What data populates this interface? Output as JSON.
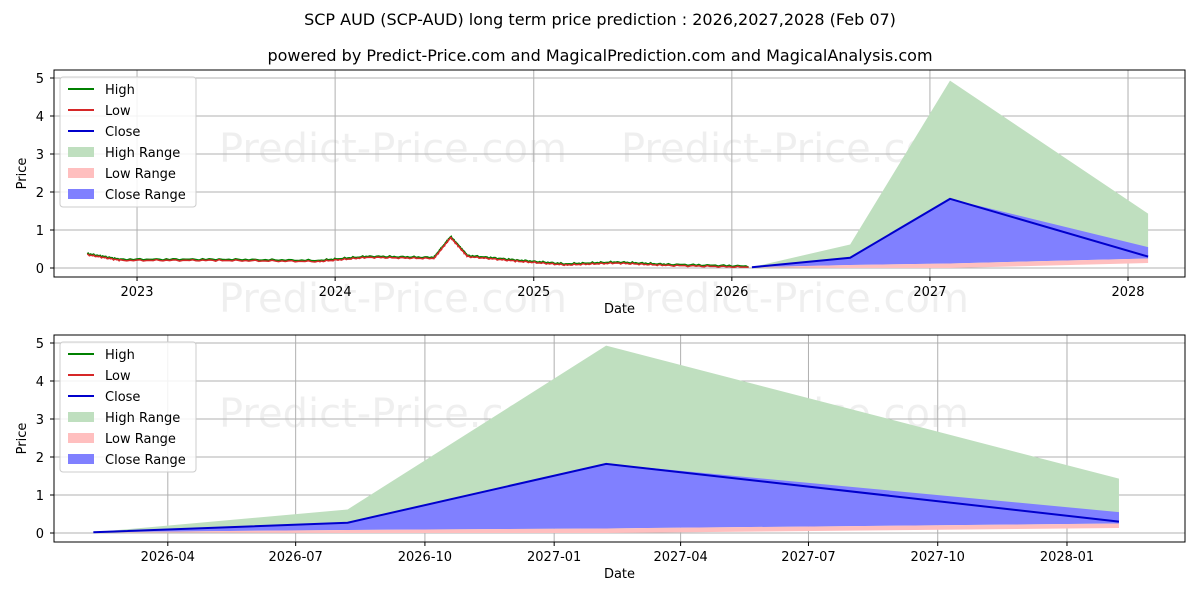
{
  "title": "SCP AUD (SCP-AUD) long term price prediction : 2026,2027,2028 (Feb 07)",
  "subtitle": "powered by Predict-Price.com and MagicalPrediction.com and MagicalAnalysis.com",
  "watermark": "Predict-Price.com",
  "colors": {
    "high": "#008000",
    "low": "#d62728",
    "close": "#0000cc",
    "high_range": "#bfdfbf",
    "low_range": "#ffbfbf",
    "close_range": "#8080ff"
  },
  "legend": [
    "High",
    "Low",
    "Close",
    "High Range",
    "Low Range",
    "Close Range"
  ],
  "chart_data": [
    {
      "type": "line",
      "title": "",
      "xlabel": "Date",
      "ylabel": "Price",
      "ylim": [
        0,
        5
      ],
      "yticks": [
        "0",
        "1",
        "2",
        "3",
        "4",
        "5"
      ],
      "xticks": [
        "2023",
        "2024",
        "2025",
        "2026",
        "2027",
        "2028"
      ],
      "grid": true,
      "legend_position": "upper left",
      "history_note": "Historical High/Low approx 0.35 (Oct 2022) declining to ~0.2, spike ~0.8 in early Aug 2024, then declining to ~0.02 by Feb 2026",
      "series": [
        {
          "name": "High/Low history",
          "x": [
            "2022-10",
            "2022-12",
            "2023-06",
            "2023-12",
            "2024-03",
            "2024-07",
            "2024-08",
            "2024-09",
            "2024-12",
            "2025-03",
            "2025-06",
            "2025-09",
            "2026-02"
          ],
          "values": [
            0.35,
            0.2,
            0.2,
            0.17,
            0.28,
            0.25,
            0.8,
            0.3,
            0.18,
            0.08,
            0.13,
            0.07,
            0.02
          ]
        },
        {
          "name": "Close",
          "x": [
            "2026-02-07",
            "2026-08-07",
            "2027-02-07",
            "2028-02-07"
          ],
          "values": [
            0.02,
            0.27,
            1.82,
            0.3
          ]
        },
        {
          "name": "High Range",
          "x": [
            "2026-02-07",
            "2026-08-07",
            "2027-02-07",
            "2028-02-07"
          ],
          "values": [
            0.02,
            0.62,
            4.93,
            1.43
          ]
        },
        {
          "name": "Low Range",
          "x": [
            "2026-02-07",
            "2026-08-07",
            "2027-02-07",
            "2028-02-07"
          ],
          "values": [
            0.02,
            0.08,
            0.12,
            0.25
          ]
        },
        {
          "name": "Close Range",
          "x": [
            "2026-02-07",
            "2026-08-07",
            "2027-02-07",
            "2028-02-07"
          ],
          "values": [
            0.02,
            0.27,
            1.82,
            0.55
          ]
        }
      ]
    },
    {
      "type": "line",
      "title": "",
      "xlabel": "Date",
      "ylabel": "Price",
      "ylim": [
        0,
        5
      ],
      "yticks": [
        "0",
        "1",
        "2",
        "3",
        "4",
        "5"
      ],
      "xticks": [
        "2026-04",
        "2026-07",
        "2026-10",
        "2027-01",
        "2027-04",
        "2027-07",
        "2027-10",
        "2028-01"
      ],
      "grid": true,
      "legend_position": "upper left",
      "series": [
        {
          "name": "Close",
          "x": [
            "2026-02-07",
            "2026-08-07",
            "2027-02-07",
            "2028-02-07"
          ],
          "values": [
            0.02,
            0.27,
            1.82,
            0.3
          ]
        },
        {
          "name": "High Range",
          "x": [
            "2026-02-07",
            "2026-08-07",
            "2027-02-07",
            "2028-02-07"
          ],
          "values": [
            0.02,
            0.62,
            4.93,
            1.43
          ]
        },
        {
          "name": "Low Range",
          "x": [
            "2026-02-07",
            "2026-08-07",
            "2027-02-07",
            "2028-02-07"
          ],
          "values": [
            0.02,
            0.08,
            0.12,
            0.25
          ]
        },
        {
          "name": "Close Range",
          "x": [
            "2026-02-07",
            "2026-08-07",
            "2027-02-07",
            "2028-02-07"
          ],
          "values": [
            0.02,
            0.27,
            1.82,
            0.55
          ]
        }
      ]
    }
  ]
}
